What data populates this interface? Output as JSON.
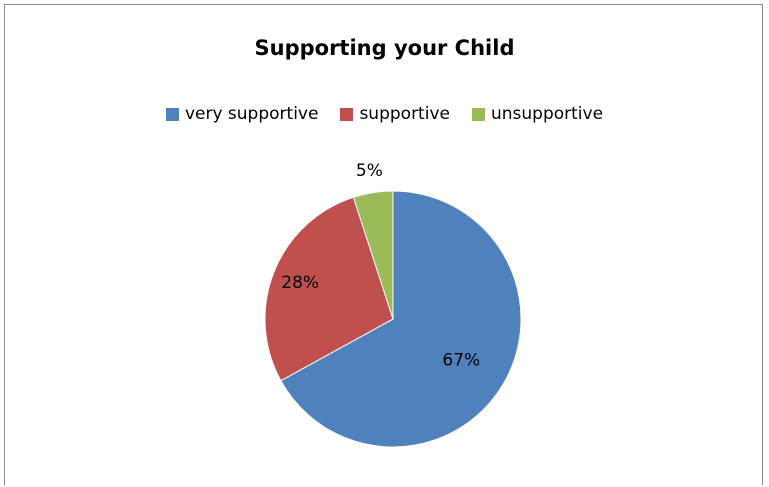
{
  "chart_data": {
    "type": "pie",
    "title": "Supporting your Child",
    "legend_position": "top",
    "slices": [
      {
        "label": "very supportive",
        "value": 67,
        "display": "67%",
        "color": "#4f81bd"
      },
      {
        "label": "supportive",
        "value": 28,
        "display": "28%",
        "color": "#c0504d"
      },
      {
        "label": "unsupportive",
        "value": 5,
        "display": "5%",
        "color": "#9bbb59"
      }
    ]
  }
}
